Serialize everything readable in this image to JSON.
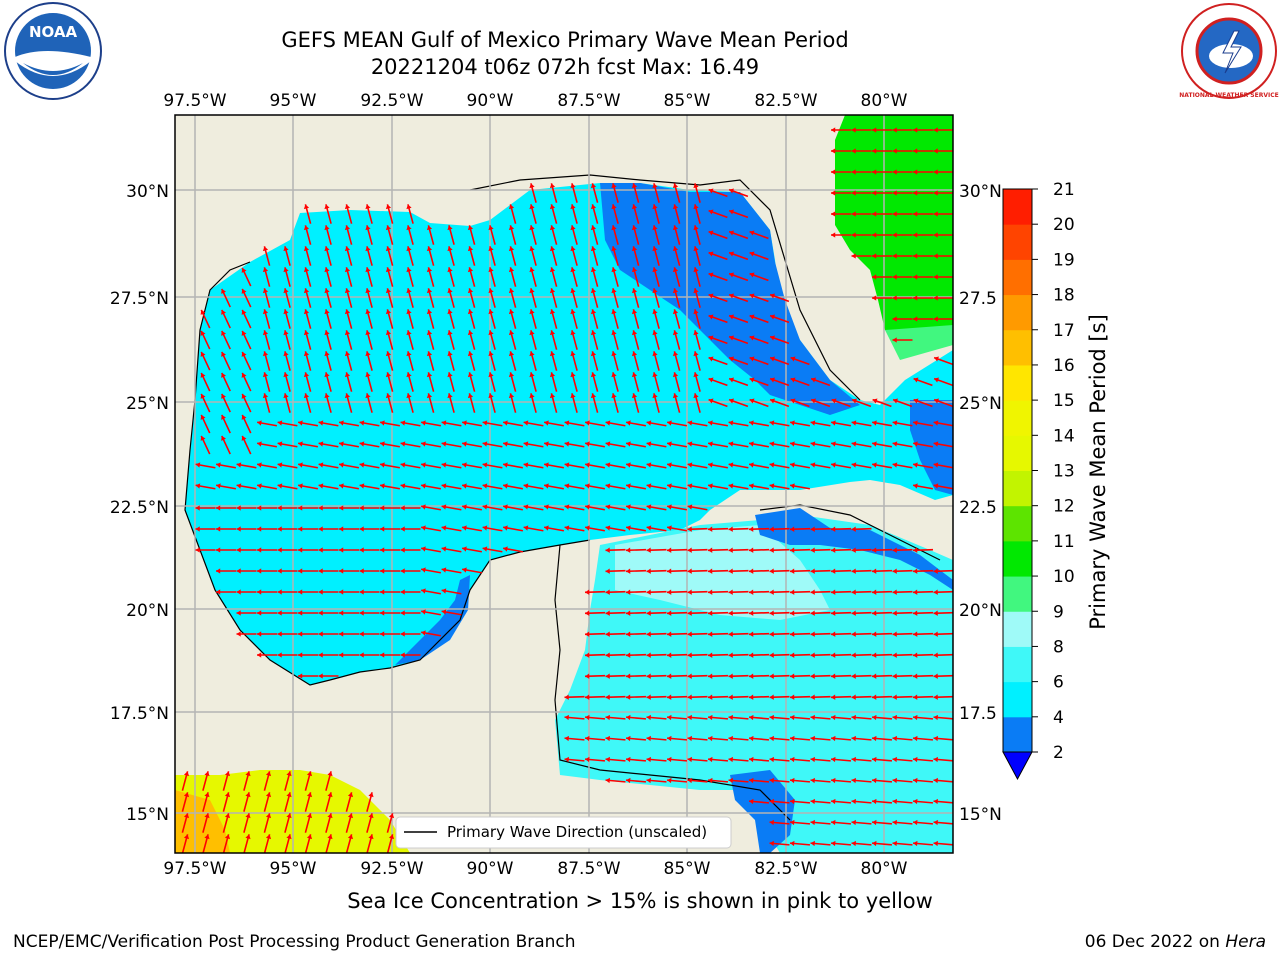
{
  "title": {
    "line1": "GEFS MEAN Gulf of Mexico Primary Wave Mean Period",
    "line2": "20221204 t06z 072h fcst   Max: 16.49"
  },
  "axes": {
    "lon_labels": [
      "97.5°W",
      "95°W",
      "92.5°W",
      "90°W",
      "87.5°W",
      "85°W",
      "82.5°W",
      "80°W"
    ],
    "lat_labels": [
      "30°N",
      "27.5°N",
      "25°N",
      "22.5°N",
      "20°N",
      "17.5°N",
      "15°N"
    ],
    "lat_labels_right": [
      "30°N",
      "27.5",
      "25°N",
      "22.5",
      "20°N",
      "17.5",
      "15°N"
    ]
  },
  "colorbar": {
    "label": "Primary Wave Mean Period [s]",
    "ticks": [
      "2",
      "4",
      "6",
      "8",
      "9",
      "10",
      "11",
      "12",
      "13",
      "14",
      "15",
      "16",
      "17",
      "18",
      "19",
      "20",
      "21"
    ],
    "colors": [
      "#0a7cf5",
      "#00f0ff",
      "#3ff8f8",
      "#9ffaf8",
      "#41f77f",
      "#01e801",
      "#5de400",
      "#c2f400",
      "#e6f800",
      "#f0f500",
      "#ffe600",
      "#ffbf00",
      "#ff9a00",
      "#ff6f00",
      "#ff4400",
      "#ff1e00"
    ],
    "under_color": "#0000ff"
  },
  "legend": {
    "label": "Primary Wave Direction (unscaled)"
  },
  "note": "Sea Ice Concentration > 15% is shown in pink to yellow",
  "footer": {
    "left": "NCEP/EMC/Verification Post Processing Product Generation Branch",
    "right_date": "06 Dec 2022 on",
    "right_host": "Hera"
  },
  "logos": {
    "left": "NOAA",
    "right": "NATIONAL WEATHER SERVICE"
  },
  "map_colors": {
    "land": "#efedde",
    "grid": "#b4b4b4",
    "arrow": "#ff0000"
  }
}
